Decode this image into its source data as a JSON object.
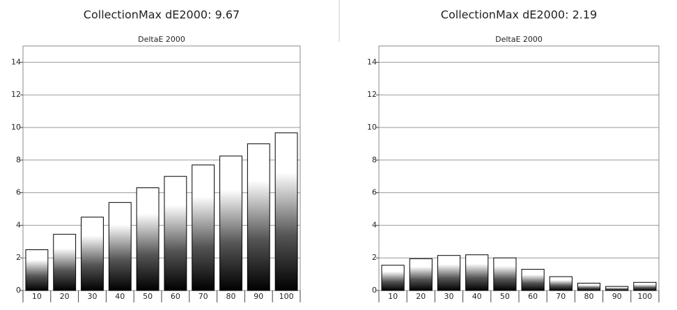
{
  "chart_data": [
    {
      "type": "bar",
      "title": "CollectionMax dE2000: 9.67",
      "subtitle": "DeltaE 2000",
      "categories": [
        "10",
        "20",
        "30",
        "40",
        "50",
        "60",
        "70",
        "80",
        "90",
        "100"
      ],
      "values": [
        2.5,
        3.45,
        4.5,
        5.4,
        6.3,
        7.0,
        7.7,
        8.25,
        9.0,
        9.67
      ],
      "gradient": [
        "#000000",
        "#ffffff"
      ],
      "ylim": [
        0,
        15
      ],
      "yticks": [
        0,
        2,
        4,
        6,
        8,
        10,
        12,
        14
      ],
      "grid": true
    },
    {
      "type": "bar",
      "title": "CollectionMax dE2000: 2.19",
      "subtitle": "DeltaE 2000",
      "categories": [
        "10",
        "20",
        "30",
        "40",
        "50",
        "60",
        "70",
        "80",
        "90",
        "100"
      ],
      "values": [
        1.55,
        1.95,
        2.15,
        2.19,
        2.0,
        1.3,
        0.85,
        0.45,
        0.25,
        0.5
      ],
      "gradient": [
        "#000000",
        "#ffffff"
      ],
      "ylim": [
        0,
        15
      ],
      "yticks": [
        0,
        2,
        4,
        6,
        8,
        10,
        12,
        14
      ],
      "grid": true
    }
  ]
}
